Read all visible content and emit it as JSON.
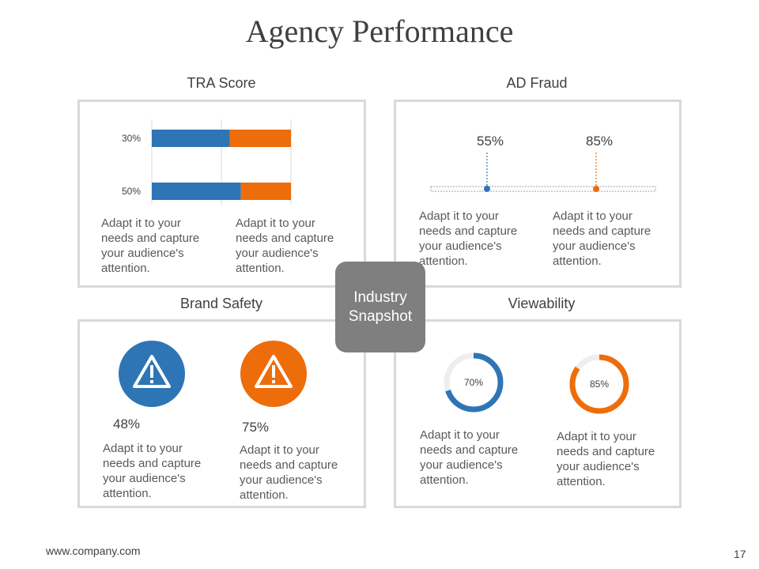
{
  "title": "Agency Performance",
  "center_label_line1": "Industry",
  "center_label_line2": "Snapshot",
  "footer": {
    "url": "www.company.com",
    "page": "17"
  },
  "colors": {
    "blue": "#2e75b6",
    "orange": "#ed6d0b",
    "gray": "#7f7f7f",
    "border": "#d9d9d9"
  },
  "desc_lines": [
    "Adapt it to your",
    "needs and capture",
    "your audience's",
    "attention."
  ],
  "panels": {
    "tra": {
      "title": "TRA Score"
    },
    "fraud": {
      "title": "AD Fraud"
    },
    "brand": {
      "title": "Brand Safety",
      "icons": [
        "warning-icon",
        "warning-icon"
      ]
    },
    "view": {
      "title": "Viewability"
    }
  },
  "chart_data": [
    {
      "type": "bar",
      "title": "TRA Score",
      "orientation": "horizontal",
      "stacked": true,
      "categories": [
        "30%",
        "50%"
      ],
      "series": [
        {
          "values": [
            0.56,
            0.64
          ]
        },
        {
          "values": [
            0.44,
            0.36
          ]
        }
      ],
      "grid": true
    },
    {
      "type": "scatter",
      "title": "AD Fraud",
      "x": [
        55,
        85
      ],
      "labels": [
        "55%",
        "85%"
      ]
    },
    {
      "type": "pie",
      "title": "Brand Safety",
      "values": [
        48,
        75
      ],
      "labels": [
        "48%",
        "75%"
      ]
    },
    {
      "type": "pie",
      "title": "Viewability",
      "values": [
        70,
        85
      ],
      "labels": [
        "70%",
        "85%"
      ]
    }
  ]
}
